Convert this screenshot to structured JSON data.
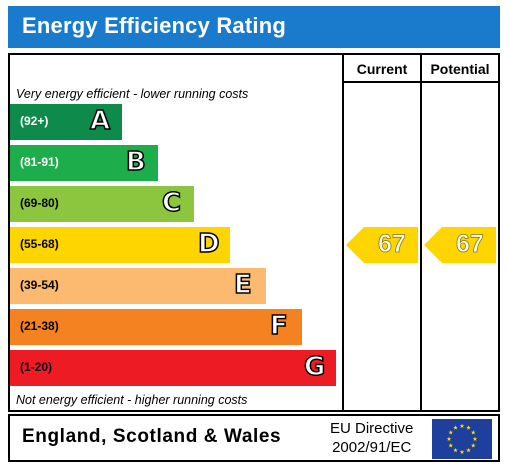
{
  "title": "Energy Efficiency Rating",
  "columns": {
    "current": "Current",
    "potential": "Potential"
  },
  "top_note": "Very energy efficient - lower running costs",
  "bottom_note": "Not energy efficient - higher running costs",
  "footer": {
    "country": "England, Scotland & Wales",
    "directive_line1": "EU Directive",
    "directive_line2": "2002/91/EC"
  },
  "chart_data": {
    "type": "bar",
    "categories": [
      "A",
      "B",
      "C",
      "D",
      "E",
      "F",
      "G"
    ],
    "bands": [
      {
        "letter": "A",
        "range": "(92+)",
        "color": "#0e8a4a",
        "range_color": "#ffffff"
      },
      {
        "letter": "B",
        "range": "(81-91)",
        "color": "#1dae4b",
        "range_color": "#ffffff"
      },
      {
        "letter": "C",
        "range": "(69-80)",
        "color": "#8cc63f",
        "range_color": "#000000"
      },
      {
        "letter": "D",
        "range": "(55-68)",
        "color": "#ffd500",
        "range_color": "#000000"
      },
      {
        "letter": "E",
        "range": "(39-54)",
        "color": "#fcba71",
        "range_color": "#000000"
      },
      {
        "letter": "F",
        "range": "(21-38)",
        "color": "#f58220",
        "range_color": "#000000"
      },
      {
        "letter": "G",
        "range": "(1-20)",
        "color": "#ed1c24",
        "range_color": "#000000"
      }
    ],
    "current": {
      "value": 67,
      "band": "D",
      "color": "#ffd500"
    },
    "potential": {
      "value": 67,
      "band": "D",
      "color": "#ffd500"
    }
  }
}
